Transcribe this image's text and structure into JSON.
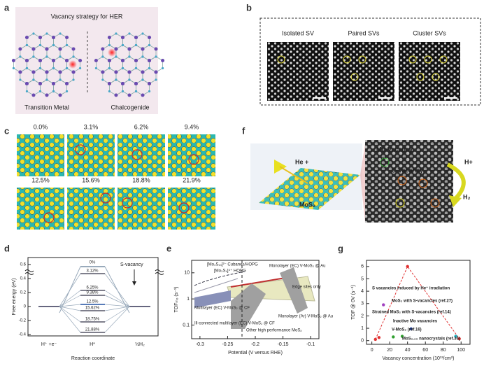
{
  "panels": {
    "a": {
      "label": "a",
      "title": "Vacancy strategy for HER",
      "left": "Transition Metal",
      "right": "Chalcogenide"
    },
    "b": {
      "label": "b",
      "images": [
        "Isolated SV",
        "Paired SVs",
        "Cluster SVs"
      ]
    },
    "c": {
      "label": "c",
      "images": [
        "0.0%",
        "3.1%",
        "6.2%",
        "9.4%",
        "12.5%",
        "15.6%",
        "18.8%",
        "21.9%"
      ]
    },
    "d": {
      "label": "d",
      "ylabel": "Free energy (eV)",
      "xlabel": "Reaction coordinate",
      "legend": "S-vacancy",
      "states": [
        "H⁺ +e⁻",
        "H*",
        "½H₂"
      ],
      "ylim": [
        -0.42,
        0.62
      ],
      "yticks": [
        0.6,
        0.4,
        0.2,
        0.0,
        -0.2,
        -0.4
      ],
      "top_level": "0%",
      "levels": [
        "3.12%",
        "6.25%",
        "9.38%",
        "12.5%",
        "15.62%",
        "18.75%",
        "21.88%"
      ],
      "energies": [
        0.47,
        0.23,
        0.16,
        0.03,
        -0.06,
        -0.22,
        -0.37
      ]
    },
    "e": {
      "label": "e",
      "ylabel": "TOFₘₒ (s⁻¹)",
      "xlabel": "Potential (V versus RHE)",
      "xlim": [
        -0.315,
        -0.085
      ],
      "xticks": [
        -0.3,
        -0.25,
        -0.2,
        -0.15,
        -0.1
      ],
      "ylim": [
        0.03,
        30
      ],
      "yticks": [
        10,
        1,
        0.1
      ],
      "log": true,
      "annotations": [
        "[Mo₃S₁₃]²⁻ Cubanes/HOPG",
        "[Mo₃S₄]⁴⁺ HOPG",
        "Monolayer (EC) V-MoS₂ @ Au",
        "Edge sites only",
        "Multilayer (EC) V-MoS₂ @ CF",
        "Ill-connected multilayer (EC) V-MoS₂ @ CF",
        "Other high performance MoSₓ",
        "Monolayer (Ar) V-MoS₂ @ Au"
      ]
    },
    "f": {
      "label": "f",
      "beam": "He +",
      "material": "MoS₂",
      "mo_vacancy": "Mo-Vacancy",
      "s_vacancy": "S-Vacancy",
      "proton": "H+",
      "product": "H₂"
    },
    "g": {
      "label": "g",
      "ylabel": "TOF @ 0V (s⁻¹)",
      "xlabel": "Vacancy concentration (10¹³/cm²)",
      "xlim": [
        -6,
        110
      ],
      "xticks": [
        0,
        20,
        40,
        60,
        80,
        100
      ],
      "ylim": [
        -0.3,
        6.5
      ],
      "yticks": [
        0,
        1,
        2,
        3,
        4,
        5,
        6
      ],
      "series": [
        {
          "color": "#e03030",
          "x": [
            4,
            8,
            40,
            98
          ],
          "values": [
            0.1,
            0.25,
            6.0,
            0.15
          ]
        },
        {
          "color": "#a040c0",
          "x": [
            13
          ],
          "values": [
            2.9
          ]
        },
        {
          "color": "#30a030",
          "x": [
            24,
            34
          ],
          "values": [
            0.3,
            0.35
          ]
        },
        {
          "color": "#2040a0",
          "x": [
            44
          ],
          "values": [
            0.95
          ]
        },
        {
          "color": "#20b0c0",
          "x": [
            94
          ],
          "values": [
            0.35
          ]
        }
      ],
      "annotations": [
        {
          "text": "S vacancies induced by He⁺ irradiation",
          "color": "#e03030"
        },
        {
          "text": "MoS₂ with S-vacancies (ref.27)",
          "color": "#a040c0"
        },
        {
          "text": "Strained MoS₂ with S-vacancies (ref.14)",
          "color": "#30a030"
        },
        {
          "text": "Inactive Mo vacancies",
          "color": "#e03030"
        },
        {
          "text": "V-MoS₂ (ref.16)",
          "color": "#2040a0"
        },
        {
          "text": "MoS₂.₆₅ nanocrystals (ref.36)",
          "color": "#20b0c0"
        }
      ]
    }
  }
}
